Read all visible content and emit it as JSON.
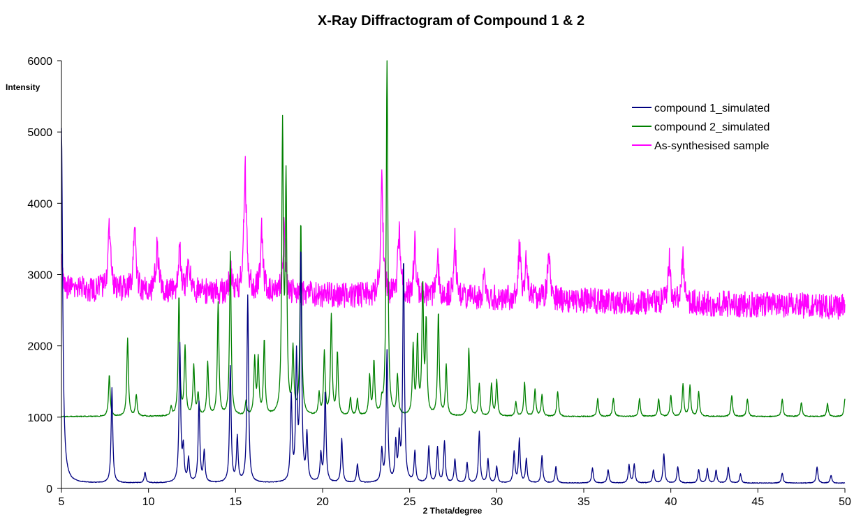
{
  "chart_data": {
    "type": "line",
    "title": "X-Ray Diffractogram of Compound 1 & 2",
    "xlabel": "2 Theta/degree",
    "ylabel": "Intensity",
    "xlim": [
      5,
      50
    ],
    "ylim": [
      0,
      6000
    ],
    "xticks": [
      5,
      10,
      15,
      20,
      25,
      30,
      35,
      40,
      45,
      50
    ],
    "yticks": [
      0,
      1000,
      2000,
      3000,
      4000,
      5000,
      6000
    ],
    "grid": false,
    "legend_position": "top-right",
    "series": [
      {
        "name": "compound 1_simulated",
        "color": "#000080",
        "baseline": 70,
        "peaks": [
          [
            5.0,
            5050
          ],
          [
            7.9,
            1400
          ],
          [
            9.8,
            220
          ],
          [
            11.8,
            2000
          ],
          [
            12.0,
            520
          ],
          [
            12.3,
            400
          ],
          [
            12.9,
            1200
          ],
          [
            13.2,
            500
          ],
          [
            14.7,
            1700
          ],
          [
            15.1,
            700
          ],
          [
            15.7,
            2700
          ],
          [
            18.2,
            1250
          ],
          [
            18.5,
            1800
          ],
          [
            18.75,
            3300
          ],
          [
            19.1,
            720
          ],
          [
            19.9,
            450
          ],
          [
            20.15,
            1350
          ],
          [
            21.1,
            680
          ],
          [
            22.0,
            330
          ],
          [
            23.4,
            520
          ],
          [
            23.7,
            1900
          ],
          [
            24.2,
            600
          ],
          [
            24.4,
            650
          ],
          [
            24.65,
            3200
          ],
          [
            25.3,
            500
          ],
          [
            26.1,
            580
          ],
          [
            26.6,
            560
          ],
          [
            27.0,
            650
          ],
          [
            27.6,
            400
          ],
          [
            28.3,
            350
          ],
          [
            29.0,
            790
          ],
          [
            29.5,
            400
          ],
          [
            30.0,
            300
          ],
          [
            31.0,
            500
          ],
          [
            31.3,
            680
          ],
          [
            31.7,
            400
          ],
          [
            32.6,
            450
          ],
          [
            33.4,
            300
          ],
          [
            35.5,
            280
          ],
          [
            36.4,
            260
          ],
          [
            37.6,
            320
          ],
          [
            37.9,
            330
          ],
          [
            39.0,
            250
          ],
          [
            39.6,
            480
          ],
          [
            40.4,
            300
          ],
          [
            41.6,
            260
          ],
          [
            42.1,
            270
          ],
          [
            42.6,
            250
          ],
          [
            43.3,
            290
          ],
          [
            44.0,
            200
          ],
          [
            46.4,
            210
          ],
          [
            48.4,
            300
          ],
          [
            49.2,
            180
          ]
        ]
      },
      {
        "name": "compound 2_simulated",
        "color": "#008000",
        "baseline": 1000,
        "peaks": [
          [
            7.75,
            1580
          ],
          [
            8.8,
            2100
          ],
          [
            9.3,
            1300
          ],
          [
            11.3,
            1120
          ],
          [
            11.75,
            2680
          ],
          [
            12.1,
            1950
          ],
          [
            12.6,
            1700
          ],
          [
            12.85,
            1300
          ],
          [
            13.4,
            1750
          ],
          [
            14.0,
            2580
          ],
          [
            14.7,
            3300
          ],
          [
            15.6,
            1200
          ],
          [
            16.1,
            1780
          ],
          [
            16.3,
            1780
          ],
          [
            16.65,
            2050
          ],
          [
            17.7,
            4980
          ],
          [
            17.9,
            4200
          ],
          [
            18.3,
            1900
          ],
          [
            18.75,
            3720
          ],
          [
            19.8,
            1300
          ],
          [
            20.1,
            1880
          ],
          [
            20.5,
            2400
          ],
          [
            20.85,
            1880
          ],
          [
            21.6,
            1250
          ],
          [
            22.0,
            1230
          ],
          [
            22.7,
            1550
          ],
          [
            22.95,
            1750
          ],
          [
            23.4,
            1150
          ],
          [
            23.7,
            6000
          ],
          [
            24.3,
            1550
          ],
          [
            25.2,
            1950
          ],
          [
            25.45,
            2080
          ],
          [
            25.75,
            2800
          ],
          [
            25.95,
            2270
          ],
          [
            26.65,
            2450
          ],
          [
            27.1,
            1700
          ],
          [
            28.4,
            1950
          ],
          [
            29.0,
            1450
          ],
          [
            29.7,
            1450
          ],
          [
            30.0,
            1500
          ],
          [
            31.1,
            1200
          ],
          [
            31.6,
            1470
          ],
          [
            32.2,
            1380
          ],
          [
            32.6,
            1300
          ],
          [
            33.5,
            1350
          ],
          [
            35.8,
            1250
          ],
          [
            36.7,
            1260
          ],
          [
            38.2,
            1250
          ],
          [
            39.3,
            1250
          ],
          [
            40.0,
            1300
          ],
          [
            40.7,
            1450
          ],
          [
            41.1,
            1430
          ],
          [
            41.6,
            1350
          ],
          [
            43.5,
            1300
          ],
          [
            44.4,
            1250
          ],
          [
            46.4,
            1250
          ],
          [
            47.5,
            1200
          ],
          [
            49.0,
            1180
          ],
          [
            50.0,
            1250
          ]
        ]
      },
      {
        "name": "As-synthesised sample",
        "color": "#ff00ff",
        "baseline_start": 2800,
        "baseline_end": 2550,
        "noise": 180,
        "peaks": [
          [
            5.0,
            3300
          ],
          [
            7.75,
            3920
          ],
          [
            9.2,
            3650
          ],
          [
            10.5,
            3480
          ],
          [
            11.8,
            3300
          ],
          [
            12.3,
            3250
          ],
          [
            14.7,
            3060
          ],
          [
            15.55,
            4770
          ],
          [
            16.5,
            3770
          ],
          [
            17.8,
            3700
          ],
          [
            23.4,
            4400
          ],
          [
            24.4,
            3720
          ],
          [
            25.3,
            3530
          ],
          [
            26.6,
            3300
          ],
          [
            27.6,
            3500
          ],
          [
            29.3,
            3050
          ],
          [
            31.3,
            3400
          ],
          [
            31.7,
            3250
          ],
          [
            33.0,
            3420
          ],
          [
            39.9,
            3250
          ],
          [
            40.7,
            3320
          ]
        ]
      }
    ]
  }
}
